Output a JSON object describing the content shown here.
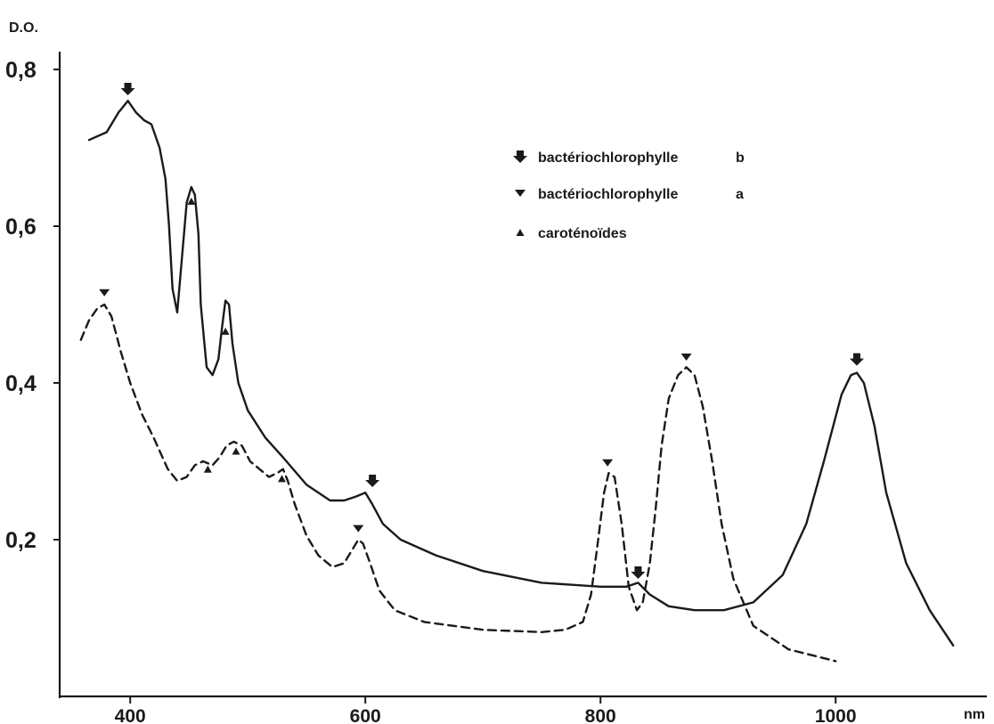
{
  "chart_data": {
    "type": "line",
    "title": "",
    "ylabel": "D.O.",
    "xlabel": "nm",
    "xlim": [
      340,
      1100
    ],
    "ylim": [
      0.0,
      0.8
    ],
    "xticks": [
      400,
      600,
      800,
      1000
    ],
    "xtick_labels": [
      "400",
      "600",
      "800",
      "1000"
    ],
    "yticks": [
      0.2,
      0.4,
      0.6,
      0.8
    ],
    "ytick_labels": [
      "0,2",
      "0,4",
      "0,6",
      "0,8"
    ],
    "grid": false,
    "legend_position": "top-right",
    "legend": [
      {
        "marker": "arrow",
        "label": "bactériochlorophylle",
        "suffix": "b"
      },
      {
        "marker": "triangle-down",
        "label": "bactériochlorophylle",
        "suffix": "a"
      },
      {
        "marker": "triangle-up",
        "label": "caroténoïdes",
        "suffix": ""
      }
    ],
    "series": [
      {
        "style": "solid",
        "color": "#1a1a1a",
        "x": [
          365,
          380,
          390,
          398,
          405,
          412,
          418,
          425,
          430,
          433,
          436,
          440,
          444,
          448,
          452,
          455,
          458,
          460,
          465,
          470,
          475,
          478,
          481,
          484,
          487,
          492,
          500,
          515,
          530,
          550,
          570,
          582,
          592,
          600,
          606,
          615,
          630,
          660,
          700,
          750,
          800,
          822,
          832,
          842,
          858,
          880,
          905,
          930,
          955,
          975,
          990,
          1005,
          1013,
          1018,
          1024,
          1033,
          1043,
          1060,
          1080,
          1100
        ],
        "y": [
          0.71,
          0.72,
          0.745,
          0.76,
          0.745,
          0.735,
          0.73,
          0.7,
          0.66,
          0.6,
          0.52,
          0.49,
          0.56,
          0.63,
          0.65,
          0.64,
          0.59,
          0.5,
          0.42,
          0.41,
          0.43,
          0.47,
          0.505,
          0.5,
          0.45,
          0.4,
          0.365,
          0.33,
          0.305,
          0.27,
          0.25,
          0.25,
          0.255,
          0.26,
          0.245,
          0.22,
          0.2,
          0.18,
          0.16,
          0.145,
          0.14,
          0.14,
          0.145,
          0.13,
          0.115,
          0.11,
          0.11,
          0.12,
          0.155,
          0.22,
          0.3,
          0.385,
          0.41,
          0.413,
          0.4,
          0.345,
          0.26,
          0.17,
          0.11,
          0.065
        ]
      },
      {
        "style": "dashed",
        "color": "#1a1a1a",
        "x": [
          358,
          365,
          372,
          378,
          384,
          392,
          400,
          410,
          420,
          432,
          440,
          448,
          455,
          462,
          470,
          476,
          482,
          488,
          495,
          502,
          510,
          518,
          525,
          530,
          534,
          540,
          550,
          560,
          572,
          582,
          590,
          594,
          598,
          604,
          612,
          625,
          650,
          700,
          750,
          770,
          785,
          792,
          798,
          803,
          807,
          812,
          818,
          824,
          831,
          836,
          842,
          847,
          852,
          858,
          866,
          873,
          880,
          887,
          895,
          903,
          913,
          930,
          960,
          1000
        ],
        "y": [
          0.455,
          0.48,
          0.495,
          0.5,
          0.485,
          0.44,
          0.4,
          0.36,
          0.33,
          0.29,
          0.275,
          0.28,
          0.295,
          0.3,
          0.295,
          0.305,
          0.32,
          0.325,
          0.32,
          0.3,
          0.29,
          0.28,
          0.285,
          0.29,
          0.275,
          0.245,
          0.205,
          0.18,
          0.165,
          0.17,
          0.19,
          0.2,
          0.195,
          0.17,
          0.135,
          0.11,
          0.095,
          0.085,
          0.082,
          0.085,
          0.095,
          0.13,
          0.2,
          0.26,
          0.285,
          0.28,
          0.22,
          0.14,
          0.11,
          0.12,
          0.17,
          0.24,
          0.32,
          0.38,
          0.41,
          0.42,
          0.41,
          0.37,
          0.3,
          0.22,
          0.15,
          0.09,
          0.06,
          0.045
        ]
      }
    ],
    "markers": [
      {
        "type": "arrow",
        "x": 398,
        "y": 0.775
      },
      {
        "type": "arrow",
        "x": 606,
        "y": 0.275
      },
      {
        "type": "arrow",
        "x": 832,
        "y": 0.158
      },
      {
        "type": "arrow",
        "x": 1018,
        "y": 0.43
      },
      {
        "type": "triangle-down",
        "x": 378,
        "y": 0.515
      },
      {
        "type": "triangle-down",
        "x": 594,
        "y": 0.214
      },
      {
        "type": "triangle-down",
        "x": 806,
        "y": 0.298
      },
      {
        "type": "triangle-down",
        "x": 873,
        "y": 0.433
      },
      {
        "type": "triangle-up",
        "x": 452,
        "y": 0.632
      },
      {
        "type": "triangle-up",
        "x": 481,
        "y": 0.466
      },
      {
        "type": "triangle-up",
        "x": 466,
        "y": 0.29
      },
      {
        "type": "triangle-up",
        "x": 490,
        "y": 0.313
      },
      {
        "type": "triangle-up",
        "x": 529,
        "y": 0.278
      }
    ]
  }
}
